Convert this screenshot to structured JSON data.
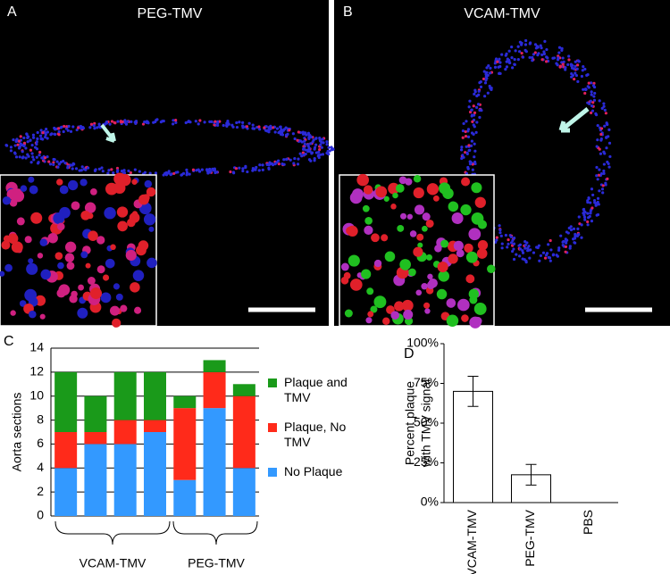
{
  "panel_labels": [
    "A",
    "B",
    "C",
    "D"
  ],
  "image_titles": [
    "PEG-TMV",
    "VCAM-TMV"
  ],
  "chart_data": [
    {
      "type": "stacked-bar",
      "ylabel": "Aorta sections",
      "categories": [
        null,
        null,
        null,
        null,
        null,
        null,
        null
      ],
      "group_labels": [
        "VCAM-TMV",
        "PEG-TMV"
      ],
      "series": [
        {
          "name": "No Plaque",
          "color": "#3399ff",
          "values": [
            4,
            6,
            6,
            7,
            3,
            9,
            4
          ]
        },
        {
          "name": "Plaque, No TMV",
          "color": "#ff2a1a",
          "values": [
            3,
            1,
            2,
            1,
            6,
            3,
            6
          ]
        },
        {
          "name": "Plaque and TMV",
          "color": "#1a9a1a",
          "values": [
            5,
            3,
            4,
            4,
            1,
            1,
            1
          ]
        }
      ],
      "ylim": [
        0,
        14
      ],
      "yticks": [
        0,
        2,
        4,
        6,
        8,
        10,
        12,
        14
      ],
      "grid": true
    },
    {
      "type": "bar",
      "ylabel": [
        "Percent plaque",
        "with TMV signal"
      ],
      "categories": [
        "VCAM-TMV",
        "PEG-TMV",
        "PBS"
      ],
      "values": [
        70,
        17.5,
        0
      ],
      "errors": [
        9.5,
        6.5,
        null
      ],
      "color": "#ffffff",
      "ylim": [
        0,
        100
      ],
      "yticks": [
        {
          "value": 0,
          "label": "0%"
        },
        {
          "value": 25,
          "label": "25%"
        },
        {
          "value": 50,
          "label": "50%"
        },
        {
          "value": 75,
          "label": "75%"
        },
        {
          "value": 100,
          "label": "100%"
        }
      ],
      "grid": false
    }
  ]
}
